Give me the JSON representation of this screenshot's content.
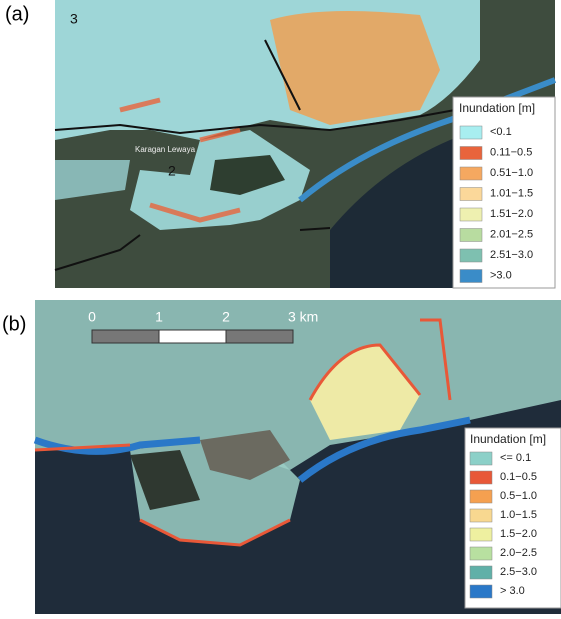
{
  "panel_a": {
    "label": "(a)",
    "region_labels": [
      "3",
      "2"
    ],
    "place_label": "Karagan Lewaya",
    "legend": {
      "title": "Inundation [m]",
      "items": [
        {
          "label": "<0.1",
          "color": "#a8eef0"
        },
        {
          "label": "0.11−0.5",
          "color": "#e8643c"
        },
        {
          "label": "0.51−1.0",
          "color": "#f5a860"
        },
        {
          "label": "1.01−1.5",
          "color": "#fbd89a"
        },
        {
          "label": "1.51−2.0",
          "color": "#eef0b0"
        },
        {
          "label": "2.01−2.5",
          "color": "#b8dca0"
        },
        {
          "label": "2.51−3.0",
          "color": "#7ec0b0"
        },
        {
          "label": ">3.0",
          "color": "#3a8cc8"
        }
      ]
    }
  },
  "panel_b": {
    "label": "(b)",
    "scale_bar": {
      "labels": [
        "0",
        "1",
        "2",
        "3 km"
      ]
    },
    "legend": {
      "title": "Inundation [m]",
      "items": [
        {
          "label": "<= 0.1",
          "color": "#8cd0c8"
        },
        {
          "label": "0.1−0.5",
          "color": "#e85838"
        },
        {
          "label": "0.5−1.0",
          "color": "#f5a050"
        },
        {
          "label": "1.0−1.5",
          "color": "#f8d890"
        },
        {
          "label": "1.5−2.0",
          "color": "#eef0a0"
        },
        {
          "label": "2.0−2.5",
          "color": "#b8e0a0"
        },
        {
          "label": "2.5−3.0",
          "color": "#60b0a8"
        },
        {
          "label": "> 3.0",
          "color": "#2a78c8"
        }
      ]
    }
  }
}
